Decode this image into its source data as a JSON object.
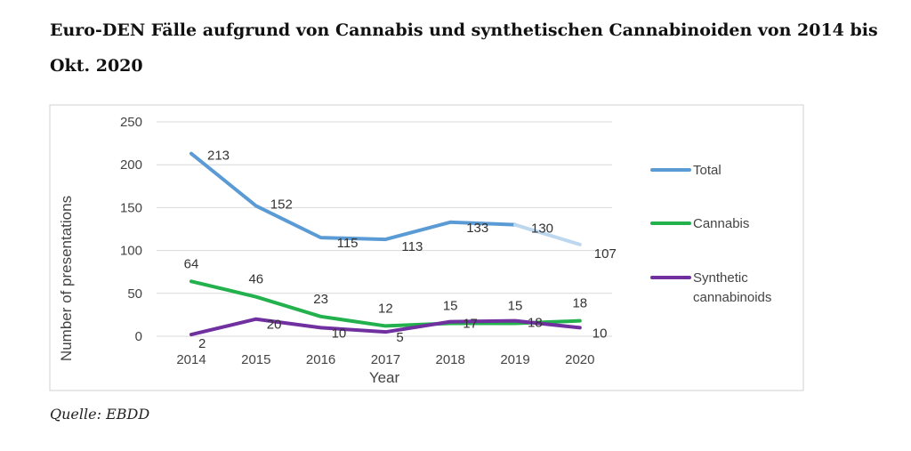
{
  "title": "Euro-DEN Fälle aufgrund von Cannabis und synthetischen Cannabinoiden von 2014 bis Okt. 2020",
  "source": "Quelle: EBDD",
  "chart_data": {
    "type": "line",
    "categories": [
      "2014",
      "2015",
      "2016",
      "2017",
      "2018",
      "2019",
      "2020"
    ],
    "xlabel": "Year",
    "ylabel": "Number of presentations",
    "ylim": [
      0,
      250
    ],
    "yticks": [
      0,
      50,
      100,
      150,
      200,
      250
    ],
    "grid": true,
    "legend_position": "right",
    "series": [
      {
        "name": "Total",
        "color": "#5b9bd5",
        "faded_color": "#bdd7ee",
        "values": [
          213,
          152,
          115,
          113,
          133,
          130,
          107
        ],
        "labels": [
          "213",
          "152",
          "115",
          "113",
          "133",
          "130",
          "107"
        ]
      },
      {
        "name": "Cannabis",
        "color": "#22b14c",
        "values": [
          64,
          46,
          23,
          12,
          15,
          15,
          18
        ],
        "labels": [
          "64",
          "46",
          "23",
          "12",
          "15",
          "15",
          "18"
        ]
      },
      {
        "name": "Synthetic cannabinoids",
        "legend_lines": [
          "Synthetic",
          "cannabinoids"
        ],
        "color": "#7030a0",
        "values": [
          2,
          20,
          10,
          5,
          17,
          18,
          10
        ],
        "labels": [
          "2",
          "20",
          "10",
          "5",
          "17",
          "18",
          "10"
        ]
      }
    ]
  }
}
